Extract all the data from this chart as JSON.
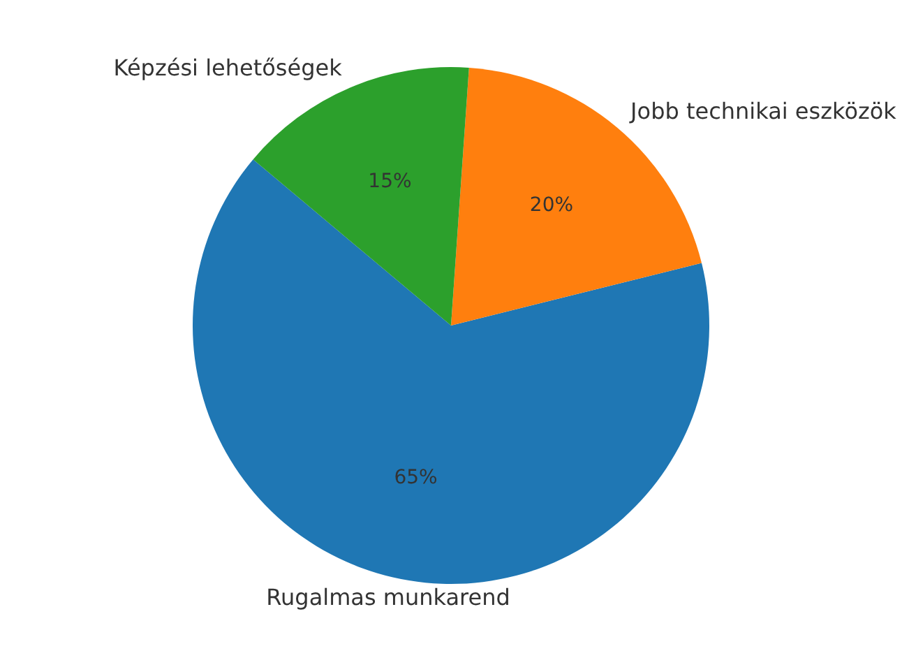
{
  "chart_data": {
    "type": "pie",
    "categories": [
      "Rugalmas munkarend",
      "Jobb technikai eszközök",
      "Képzési lehetőségek"
    ],
    "values": [
      65,
      20,
      15
    ],
    "colors": [
      "#1f77b4",
      "#ff7f0e",
      "#2ca02c"
    ],
    "value_labels": [
      "65%",
      "20%",
      "15%"
    ],
    "legend": false
  }
}
